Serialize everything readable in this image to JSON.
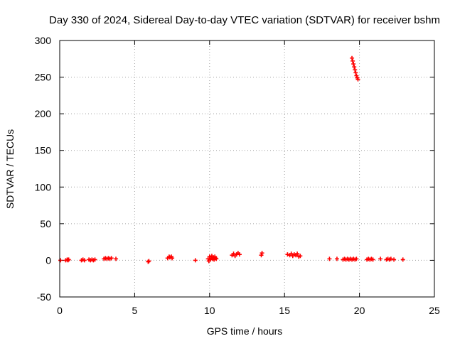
{
  "chart_data": {
    "type": "scatter",
    "title": "Day 330 of 2024, Sidereal Day-to-day VTEC variation (SDTVAR) for receiver bshm",
    "xlabel": "GPS time / hours",
    "ylabel": "SDTVAR / TECUs",
    "xlim": [
      0,
      25
    ],
    "ylim": [
      -50,
      300
    ],
    "xticks": [
      0,
      5,
      10,
      15,
      20,
      25
    ],
    "yticks": [
      -50,
      0,
      50,
      100,
      150,
      200,
      250,
      300
    ],
    "grid": true,
    "marker": "+",
    "color": "#ff0000",
    "series": [
      {
        "name": "SDTVAR",
        "points": [
          [
            0.05,
            0
          ],
          [
            0.4,
            0
          ],
          [
            0.5,
            1
          ],
          [
            0.55,
            0
          ],
          [
            0.6,
            1
          ],
          [
            1.45,
            0
          ],
          [
            1.55,
            1
          ],
          [
            1.65,
            0
          ],
          [
            1.95,
            1
          ],
          [
            2.05,
            0
          ],
          [
            2.15,
            1
          ],
          [
            2.25,
            0
          ],
          [
            2.35,
            1
          ],
          [
            2.95,
            2
          ],
          [
            3.05,
            3
          ],
          [
            3.15,
            2
          ],
          [
            3.25,
            3
          ],
          [
            3.35,
            2
          ],
          [
            3.45,
            3
          ],
          [
            3.75,
            2
          ],
          [
            5.9,
            -2
          ],
          [
            5.95,
            -1
          ],
          [
            7.2,
            3
          ],
          [
            7.3,
            5
          ],
          [
            7.35,
            4
          ],
          [
            7.45,
            5
          ],
          [
            7.5,
            3
          ],
          [
            9.05,
            0
          ],
          [
            9.9,
            2
          ],
          [
            9.95,
            -1
          ],
          [
            10.0,
            5
          ],
          [
            10.05,
            1
          ],
          [
            10.1,
            3
          ],
          [
            10.15,
            6
          ],
          [
            10.2,
            2
          ],
          [
            10.25,
            4
          ],
          [
            10.3,
            1
          ],
          [
            10.35,
            5
          ],
          [
            10.4,
            3
          ],
          [
            10.45,
            2
          ],
          [
            11.5,
            7
          ],
          [
            11.6,
            9
          ],
          [
            11.7,
            6
          ],
          [
            11.8,
            8
          ],
          [
            11.9,
            10
          ],
          [
            12.0,
            8
          ],
          [
            13.45,
            7
          ],
          [
            13.5,
            10
          ],
          [
            15.2,
            8
          ],
          [
            15.35,
            7
          ],
          [
            15.45,
            9
          ],
          [
            15.55,
            6
          ],
          [
            15.65,
            8
          ],
          [
            15.75,
            7
          ],
          [
            15.85,
            9
          ],
          [
            15.95,
            5
          ],
          [
            16.05,
            6
          ],
          [
            18.0,
            2
          ],
          [
            18.5,
            2
          ],
          [
            18.9,
            1
          ],
          [
            19.0,
            2
          ],
          [
            19.1,
            1
          ],
          [
            19.2,
            2
          ],
          [
            19.3,
            1
          ],
          [
            19.4,
            2
          ],
          [
            19.5,
            1
          ],
          [
            19.6,
            2
          ],
          [
            19.7,
            1
          ],
          [
            19.8,
            2
          ],
          [
            19.5,
            276
          ],
          [
            19.55,
            272
          ],
          [
            19.6,
            268
          ],
          [
            19.65,
            264
          ],
          [
            19.7,
            260
          ],
          [
            19.75,
            256
          ],
          [
            19.8,
            252
          ],
          [
            19.85,
            249
          ],
          [
            19.9,
            247
          ],
          [
            20.5,
            1
          ],
          [
            20.6,
            2
          ],
          [
            20.7,
            1
          ],
          [
            20.8,
            2
          ],
          [
            20.9,
            1
          ],
          [
            21.4,
            2
          ],
          [
            21.8,
            1
          ],
          [
            21.9,
            2
          ],
          [
            22.0,
            1
          ],
          [
            22.1,
            2
          ],
          [
            22.3,
            1
          ],
          [
            22.9,
            1
          ]
        ]
      }
    ]
  }
}
